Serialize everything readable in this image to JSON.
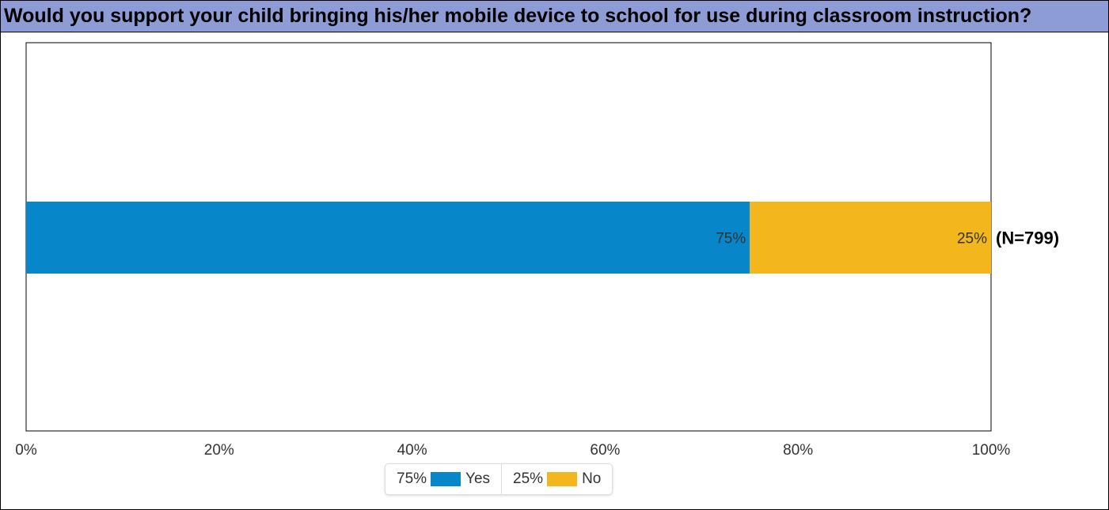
{
  "header": {
    "title": "Would you support your child bringing his/her mobile device to school for use during classroom instruction?"
  },
  "chart_data": {
    "type": "bar",
    "orientation": "horizontal",
    "stacked": true,
    "title": "Would you support your child bringing his/her mobile device to school for use during classroom instruction?",
    "xlabel": "",
    "ylabel": "",
    "xlim": [
      0,
      100
    ],
    "x_ticks": [
      "0%",
      "20%",
      "40%",
      "60%",
      "80%",
      "100%"
    ],
    "grid": false,
    "legend_position": "bottom",
    "categories": [
      ""
    ],
    "series": [
      {
        "name": "Yes",
        "values": [
          75
        ],
        "label": "75%",
        "color": "#0787c9"
      },
      {
        "name": "No",
        "values": [
          25
        ],
        "label": "25%",
        "color": "#f3b71d"
      }
    ],
    "annotation": "(N=799)"
  },
  "legend": {
    "items": [
      {
        "pct": "75%",
        "name": "Yes",
        "color": "#0787c9"
      },
      {
        "pct": "25%",
        "name": "No",
        "color": "#f3b71d"
      }
    ]
  },
  "colors": {
    "title_bar": "#8e9cd6",
    "yes": "#0787c9",
    "no": "#f3b71d"
  }
}
